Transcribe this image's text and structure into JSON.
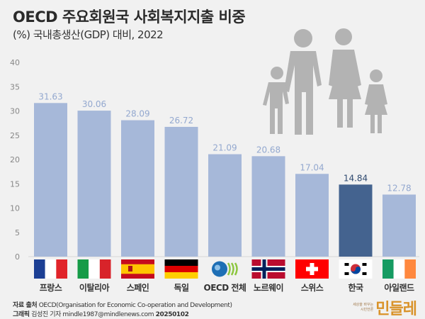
{
  "header": {
    "title": "OECD 주요회원국 사회복지지출 비중",
    "subtitle": "(%) 국내총생산(GDP) 대비, 2022"
  },
  "chart_data": {
    "type": "bar",
    "title": "OECD 주요회원국 사회복지지출 비중",
    "subtitle": "(%) 국내총생산(GDP) 대비, 2022",
    "categories": [
      "프랑스",
      "이탈리아",
      "스페인",
      "독일",
      "OECD 전체",
      "노르웨이",
      "스위스",
      "한국",
      "아일랜드"
    ],
    "values": [
      31.63,
      30.06,
      28.09,
      26.72,
      21.09,
      20.68,
      17.04,
      14.84,
      12.78
    ],
    "value_labels": [
      "31.63",
      "30.06",
      "28.09",
      "26.72",
      "21.09",
      "20.68",
      "17.04",
      "14.84",
      "12.78"
    ],
    "flags": [
      "france-flag",
      "italy-flag",
      "spain-flag",
      "germany-flag",
      "oecd-logo",
      "norway-flag",
      "switzerland-flag",
      "korea-flag",
      "ireland-flag"
    ],
    "highlight": "한국",
    "ylim": [
      0,
      40
    ],
    "yticks": [
      "0",
      "5",
      "10",
      "15",
      "20",
      "25",
      "30",
      "35",
      "40"
    ],
    "grid": false,
    "xlabel": "",
    "ylabel": "",
    "colors": {
      "bar": "#a6b8d9",
      "highlight": "#44638f",
      "label": "#93a8cf",
      "highlight_label": "#2f4a70",
      "background": "#f1f1f1"
    }
  },
  "footer": {
    "source_label": "자료 출처",
    "source_text": "OECD(Organisation for Economic Co-operation and Development)",
    "graphic_label": "그래픽",
    "graphic_text": "김성진 기자 mindle1987@mindlenews.com",
    "date": "20250102",
    "logo_small_1": "세상을 바꾸는",
    "logo_small_2": "시민언론",
    "logo_main": "민들레"
  }
}
